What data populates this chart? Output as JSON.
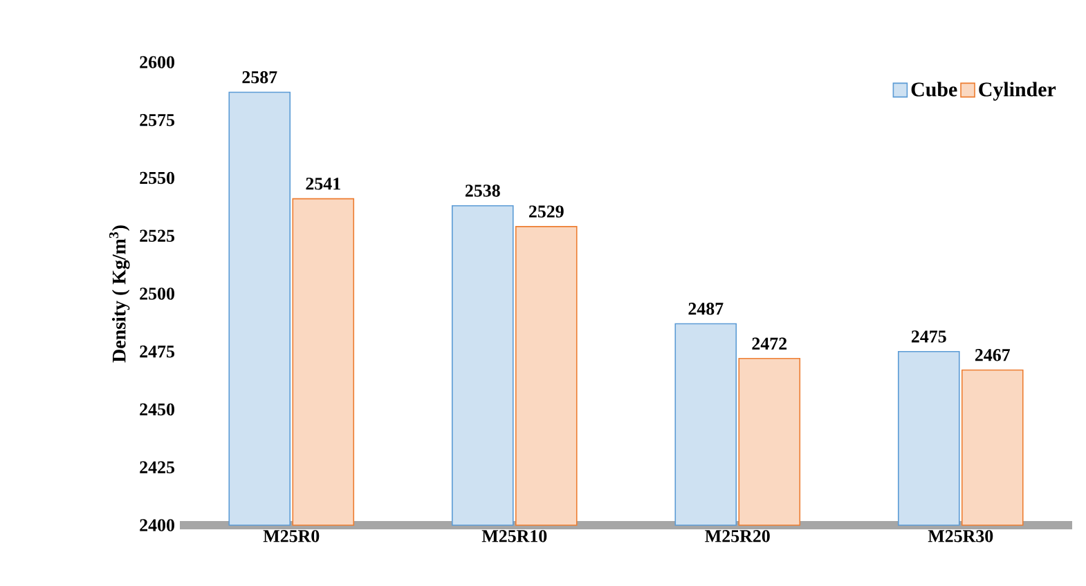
{
  "chart_data": {
    "type": "bar",
    "ylabel": "Density ( Kg/m$^{3}$)",
    "categories": [
      "M25R0",
      "M25R10",
      "M25R20",
      "M25R30"
    ],
    "series": [
      {
        "name": "Cube",
        "color": "#5b9bd5",
        "values": [
          2587,
          2538,
          2487,
          2475
        ]
      },
      {
        "name": "Cylinder",
        "color": "#ed7d31",
        "values": [
          2541,
          2529,
          2472,
          2467
        ]
      }
    ],
    "ylim": [
      2400,
      2600
    ],
    "yticks": [
      2400,
      2425,
      2450,
      2475,
      2500,
      2525,
      2550,
      2575,
      2600
    ],
    "data_labels": true,
    "legend": "top right"
  }
}
